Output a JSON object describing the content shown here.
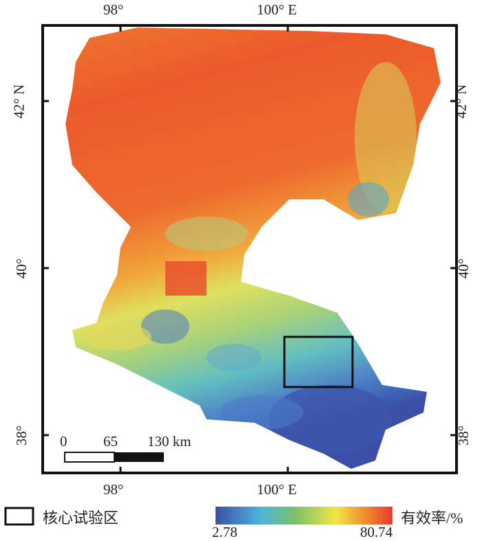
{
  "map": {
    "top_lon_labels": [
      "98°",
      "100°  E"
    ],
    "bottom_lon_labels": [
      "98°",
      "100°  E"
    ],
    "left_lat_labels": [
      "42°  N",
      "40°",
      "38°"
    ],
    "right_lat_labels": [
      "42°  N",
      "40°",
      "38°"
    ]
  },
  "scale_bar": {
    "labels": [
      "0",
      "65",
      "130 km"
    ]
  },
  "legend": {
    "core_area_label": "核心试验区",
    "colorbar_title": "有效率/%",
    "min_label": "2.78",
    "max_label": "80.74",
    "colors": [
      "#3d4fa3",
      "#4bb4dc",
      "#7cc16a",
      "#f2e545",
      "#f08a2e",
      "#e83a2e"
    ]
  }
}
